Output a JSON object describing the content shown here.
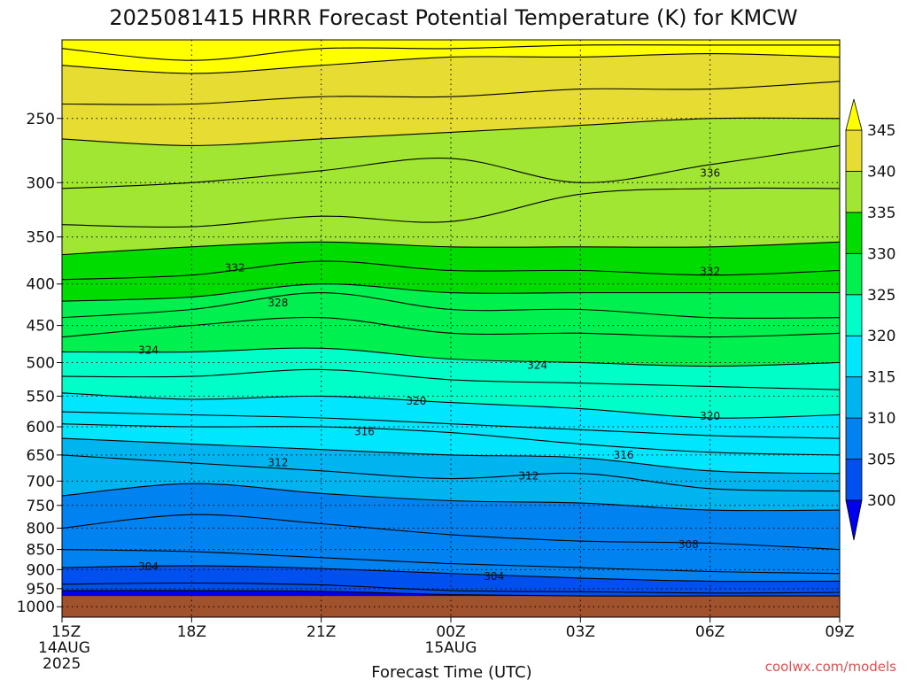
{
  "chart_data": {
    "type": "contour",
    "title": "2025081415 HRRR Forecast Potential Temperature (K) for KMCW",
    "xlabel": "Forecast Time (UTC)",
    "x_ticks": [
      {
        "hours": 0,
        "label": "15Z",
        "sub1": "14AUG",
        "sub2": "2025"
      },
      {
        "hours": 3,
        "label": "18Z",
        "sub1": "",
        "sub2": ""
      },
      {
        "hours": 6,
        "label": "21Z",
        "sub1": "",
        "sub2": ""
      },
      {
        "hours": 9,
        "label": "00Z",
        "sub1": "15AUG",
        "sub2": ""
      },
      {
        "hours": 12,
        "label": "03Z",
        "sub1": "",
        "sub2": ""
      },
      {
        "hours": 15,
        "label": "06Z",
        "sub1": "",
        "sub2": ""
      },
      {
        "hours": 18,
        "label": "09Z",
        "sub1": "",
        "sub2": ""
      }
    ],
    "xlim": [
      0,
      18
    ],
    "y_ticks": [
      250,
      300,
      350,
      400,
      450,
      500,
      550,
      600,
      650,
      700,
      750,
      800,
      850,
      900,
      950,
      1000
    ],
    "ylim": [
      200,
      1030
    ],
    "y_scale": "log-pressure",
    "ground_level": 970,
    "ground_color": "#a0522d",
    "fill_levels": [
      300,
      305,
      310,
      315,
      320,
      325,
      330,
      335,
      340,
      345
    ],
    "fill_colors": [
      "#0000f0",
      "#0050f0",
      "#0082f0",
      "#00b4f0",
      "#00e6ff",
      "#00ffc8",
      "#00f050",
      "#00dc00",
      "#a0e632",
      "#e6dc32",
      "#ffff00"
    ],
    "contour_interval": 2,
    "isentropes": [
      {
        "theta": 300,
        "pressure": [
          955,
          955,
          957,
          966,
          970,
          970,
          970
        ]
      },
      {
        "theta": 302,
        "pressure": [
          938,
          935,
          940,
          955,
          958,
          962,
          960
        ]
      },
      {
        "theta": 304,
        "pressure": [
          895,
          890,
          897,
          910,
          922,
          930,
          930
        ]
      },
      {
        "theta": 306,
        "pressure": [
          850,
          855,
          870,
          885,
          895,
          905,
          910
        ]
      },
      {
        "theta": 308,
        "pressure": [
          800,
          770,
          790,
          815,
          830,
          835,
          850
        ]
      },
      {
        "theta": 310,
        "pressure": [
          730,
          705,
          725,
          740,
          745,
          760,
          760
        ]
      },
      {
        "theta": 312,
        "pressure": [
          650,
          665,
          680,
          695,
          685,
          715,
          720
        ]
      },
      {
        "theta": 314,
        "pressure": [
          620,
          630,
          640,
          650,
          655,
          680,
          685
        ]
      },
      {
        "theta": 316,
        "pressure": [
          595,
          600,
          600,
          610,
          630,
          645,
          650
        ]
      },
      {
        "theta": 318,
        "pressure": [
          575,
          580,
          585,
          595,
          605,
          615,
          620
        ]
      },
      {
        "theta": 320,
        "pressure": [
          545,
          555,
          550,
          560,
          570,
          585,
          580
        ]
      },
      {
        "theta": 322,
        "pressure": [
          520,
          520,
          510,
          525,
          530,
          535,
          540
        ]
      },
      {
        "theta": 324,
        "pressure": [
          485,
          485,
          480,
          495,
          500,
          505,
          500
        ]
      },
      {
        "theta": 326,
        "pressure": [
          465,
          450,
          440,
          460,
          460,
          465,
          460
        ]
      },
      {
        "theta": 328,
        "pressure": [
          440,
          430,
          410,
          430,
          430,
          440,
          440
        ]
      },
      {
        "theta": 330,
        "pressure": [
          420,
          415,
          400,
          410,
          410,
          410,
          410
        ]
      },
      {
        "theta": 332,
        "pressure": [
          395,
          390,
          375,
          385,
          385,
          390,
          385
        ]
      },
      {
        "theta": 334,
        "pressure": [
          368,
          360,
          355,
          360,
          360,
          360,
          355
        ]
      },
      {
        "theta": 336,
        "pressure": [
          338,
          340,
          330,
          335,
          310,
          305,
          305
        ]
      },
      {
        "theta": 338,
        "pressure": [
          305,
          300,
          290,
          280,
          300,
          285,
          270
        ]
      },
      {
        "theta": 340,
        "pressure": [
          265,
          270,
          265,
          260,
          255,
          250,
          250
        ]
      },
      {
        "theta": 342,
        "pressure": [
          240,
          240,
          235,
          235,
          230,
          230,
          225
        ]
      },
      {
        "theta": 344,
        "pressure": [
          215,
          220,
          215,
          210,
          210,
          208,
          210
        ]
      },
      {
        "theta": 346,
        "pressure": [
          205,
          212,
          205,
          205,
          203,
          203,
          203
        ]
      }
    ],
    "contour_labels": [
      {
        "text": "304",
        "hours": 2.0,
        "pressure": 892
      },
      {
        "text": "304",
        "hours": 10.0,
        "pressure": 918
      },
      {
        "text": "308",
        "hours": 14.5,
        "pressure": 838
      },
      {
        "text": "312",
        "hours": 5.0,
        "pressure": 664
      },
      {
        "text": "312",
        "hours": 10.8,
        "pressure": 690
      },
      {
        "text": "316",
        "hours": 7.0,
        "pressure": 608
      },
      {
        "text": "316",
        "hours": 13.0,
        "pressure": 650
      },
      {
        "text": "320",
        "hours": 8.2,
        "pressure": 558
      },
      {
        "text": "320",
        "hours": 15.0,
        "pressure": 582
      },
      {
        "text": "324",
        "hours": 2.0,
        "pressure": 483
      },
      {
        "text": "324",
        "hours": 11.0,
        "pressure": 504
      },
      {
        "text": "328",
        "hours": 5.0,
        "pressure": 422
      },
      {
        "text": "332",
        "hours": 4.0,
        "pressure": 382
      },
      {
        "text": "332",
        "hours": 15.0,
        "pressure": 386
      },
      {
        "text": "336",
        "hours": 15.0,
        "pressure": 292
      }
    ],
    "grid": true
  },
  "credit": "coolwx.com/models",
  "colors": {
    "credit": "#e05050",
    "line": "#000000"
  }
}
